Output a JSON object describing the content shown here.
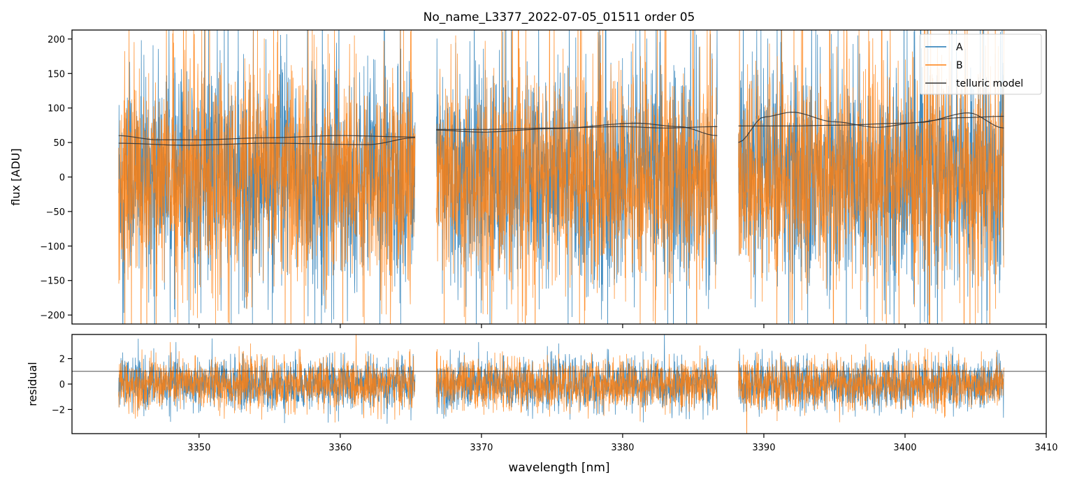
{
  "chart_data": {
    "type": "line",
    "title": "No_name_L3377_2022-07-05_01511  order 05",
    "xlabel": "wavelength [nm]",
    "xlim": [
      3341,
      3410
    ],
    "xticks": [
      3350,
      3360,
      3370,
      3380,
      3390,
      3400,
      3410
    ],
    "top": {
      "ylabel": "flux [ADU]",
      "ylim": [
        -213,
        213
      ],
      "yticks": [
        -200,
        -150,
        -100,
        -50,
        0,
        50,
        100,
        150,
        200
      ],
      "legend": {
        "placement": "top-right",
        "entries": [
          "A",
          "B",
          "telluric model"
        ]
      },
      "series": [
        {
          "name": "A",
          "color": "#1f77b4",
          "noise_center": 0,
          "noise_sigma": 75
        },
        {
          "name": "B",
          "color": "#ff7f0e",
          "noise_center": 0,
          "noise_sigma": 75
        },
        {
          "name": "telluric model",
          "color": "#333333"
        }
      ],
      "segments": [
        {
          "x_start": 3344.3,
          "x_end": 3365.3,
          "model_A": {
            "x": [
              3344.3,
              3347,
              3350,
              3355,
              3360,
              3365.3
            ],
            "y": [
              60,
              54,
              54,
              57,
              60,
              58
            ]
          },
          "model_B": {
            "x": [
              3344.3,
              3349,
              3355,
              3362,
              3365.3
            ],
            "y": [
              49,
              46,
              49,
              47,
              57
            ]
          }
        },
        {
          "x_start": 3366.8,
          "x_end": 3386.7,
          "model_A": {
            "x": [
              3366.8,
              3370,
              3375,
              3380,
              3383,
              3386.7
            ],
            "y": [
              69,
              69,
              71,
              73,
              71,
              73
            ]
          },
          "model_B": {
            "x": [
              3366.8,
              3370,
              3375,
              3381,
              3384,
              3386.7
            ],
            "y": [
              68,
              65,
              70,
              78,
              73,
              60
            ]
          }
        },
        {
          "x_start": 3388.2,
          "x_end": 3407,
          "model_A": {
            "x": [
              3388.2,
              3392,
              3395,
              3400,
              3404,
              3407
            ],
            "y": [
              74,
              74,
              75,
              78,
              86,
              88
            ]
          },
          "model_B": {
            "x": [
              3388.2,
              3390,
              3392,
              3395,
              3398,
              3401,
              3404.5,
              3407
            ],
            "y": [
              50,
              87,
              94,
              80,
              72,
              79,
              93,
              71
            ]
          }
        }
      ]
    },
    "bottom": {
      "ylabel": "residual",
      "ylim": [
        -3.9,
        3.9
      ],
      "yticks": [
        -2,
        0,
        2
      ],
      "reference_line": 1,
      "series": [
        {
          "name": "A",
          "color": "#1f77b4",
          "noise_center": 0,
          "noise_sigma": 1
        },
        {
          "name": "B",
          "color": "#ff7f0e",
          "noise_center": 0,
          "noise_sigma": 1
        }
      ]
    }
  }
}
